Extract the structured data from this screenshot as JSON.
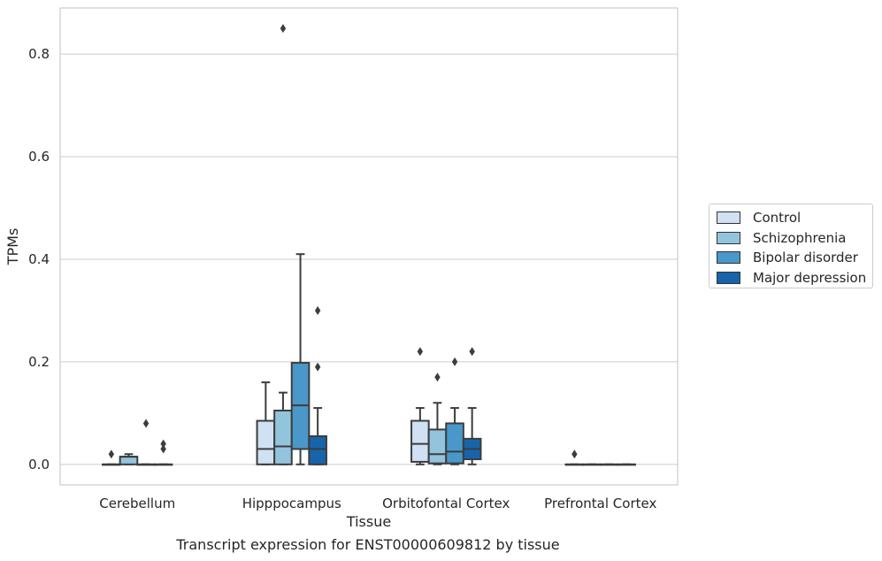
{
  "chart_data": {
    "type": "box",
    "xlabel": "Tissue",
    "ylabel": "TPMs",
    "caption": "Transcript expression for ENST00000609812 by tissue",
    "ylim": [
      -0.04,
      0.89
    ],
    "yticks": [
      "0.0",
      "0.2",
      "0.4",
      "0.6",
      "0.8"
    ],
    "grid": true,
    "legend_position": "right",
    "categories": [
      "Cerebellum",
      "Hipppocampus",
      "Orbitofontal Cortex",
      "Prefrontal Cortex"
    ],
    "series": [
      {
        "name": "Control",
        "color": "#cfe1f2",
        "boxes": [
          {
            "whislo": 0,
            "q1": 0,
            "med": 0,
            "q3": 0,
            "whishi": 0,
            "fliers": [
              0.02
            ]
          },
          {
            "whislo": 0,
            "q1": 0,
            "med": 0.03,
            "q3": 0.085,
            "whishi": 0.16,
            "fliers": []
          },
          {
            "whislo": 0,
            "q1": 0.005,
            "med": 0.04,
            "q3": 0.085,
            "whishi": 0.11,
            "fliers": [
              0.22
            ]
          },
          {
            "whislo": 0,
            "q1": 0,
            "med": 0,
            "q3": 0,
            "whishi": 0,
            "fliers": [
              0.02
            ]
          }
        ]
      },
      {
        "name": "Schizophrenia",
        "color": "#93c4de",
        "boxes": [
          {
            "whislo": 0,
            "q1": 0,
            "med": 0.015,
            "q3": 0.015,
            "whishi": 0.02,
            "fliers": []
          },
          {
            "whislo": 0,
            "q1": 0,
            "med": 0.035,
            "q3": 0.105,
            "whishi": 0.14,
            "fliers": [
              0.85
            ]
          },
          {
            "whislo": 0,
            "q1": 0.002,
            "med": 0.02,
            "q3": 0.068,
            "whishi": 0.12,
            "fliers": [
              0.17
            ]
          },
          {
            "whislo": 0,
            "q1": 0,
            "med": 0,
            "q3": 0,
            "whishi": 0,
            "fliers": []
          }
        ]
      },
      {
        "name": "Bipolar disorder",
        "color": "#4a98c9",
        "boxes": [
          {
            "whislo": 0,
            "q1": 0,
            "med": 0,
            "q3": 0,
            "whishi": 0,
            "fliers": [
              0.08
            ]
          },
          {
            "whislo": 0,
            "q1": 0.03,
            "med": 0.115,
            "q3": 0.198,
            "whishi": 0.41,
            "fliers": []
          },
          {
            "whislo": 0,
            "q1": 0.002,
            "med": 0.025,
            "q3": 0.08,
            "whishi": 0.11,
            "fliers": [
              0.2
            ]
          },
          {
            "whislo": 0,
            "q1": 0,
            "med": 0,
            "q3": 0,
            "whishi": 0,
            "fliers": []
          }
        ]
      },
      {
        "name": "Major depression",
        "color": "#1764ab",
        "boxes": [
          {
            "whislo": 0,
            "q1": 0,
            "med": 0,
            "q3": 0,
            "whishi": 0,
            "fliers": [
              0.03,
              0.04
            ]
          },
          {
            "whislo": 0,
            "q1": 0,
            "med": 0.03,
            "q3": 0.055,
            "whishi": 0.11,
            "fliers": [
              0.19,
              0.3
            ]
          },
          {
            "whislo": 0,
            "q1": 0.01,
            "med": 0.03,
            "q3": 0.05,
            "whishi": 0.11,
            "fliers": [
              0.22
            ]
          },
          {
            "whislo": 0,
            "q1": 0,
            "med": 0,
            "q3": 0,
            "whishi": 0,
            "fliers": []
          }
        ]
      }
    ]
  }
}
